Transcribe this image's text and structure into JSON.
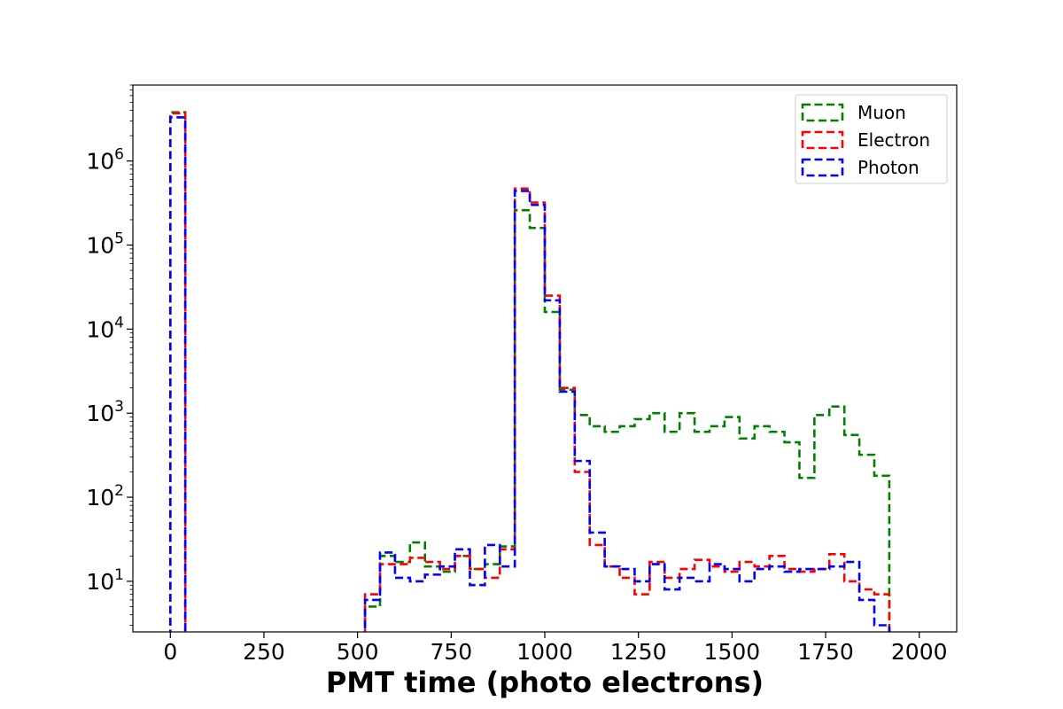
{
  "chart_data": {
    "type": "histogram-step",
    "title": "",
    "xlabel": "PMT time (photo electrons)",
    "ylabel": "",
    "xlim": [
      -100,
      2100
    ],
    "ylim": [
      2.5,
      8000000
    ],
    "yscale": "log",
    "grid": false,
    "legend_position": "top-right",
    "x_ticks": [
      0,
      250,
      500,
      750,
      1000,
      1250,
      1500,
      1750,
      2000
    ],
    "x_tick_labels": [
      "0",
      "250",
      "500",
      "750",
      "1000",
      "1250",
      "1500",
      "1750",
      "2000"
    ],
    "y_ticks": [
      10,
      100,
      1000,
      10000,
      100000,
      1000000
    ],
    "y_tick_labels": [
      {
        "base": "10",
        "exp": "1"
      },
      {
        "base": "10",
        "exp": "2"
      },
      {
        "base": "10",
        "exp": "3"
      },
      {
        "base": "10",
        "exp": "4"
      },
      {
        "base": "10",
        "exp": "5"
      },
      {
        "base": "10",
        "exp": "6"
      }
    ],
    "bin_edges": [
      0,
      40,
      80,
      120,
      160,
      200,
      240,
      280,
      320,
      360,
      400,
      440,
      480,
      520,
      560,
      600,
      640,
      680,
      720,
      760,
      800,
      840,
      880,
      920,
      960,
      1000,
      1040,
      1080,
      1120,
      1160,
      1200,
      1240,
      1280,
      1320,
      1360,
      1400,
      1440,
      1480,
      1520,
      1560,
      1600,
      1640,
      1680,
      1720,
      1760,
      1800,
      1840,
      1880,
      1920
    ],
    "series": [
      {
        "name": "Muon",
        "color": "#008000",
        "values": [
          3800000,
          0,
          0,
          0,
          0,
          0,
          0,
          0,
          0,
          0,
          0,
          0,
          0,
          5,
          20,
          17,
          29,
          15,
          13,
          20,
          14,
          16,
          26,
          260000,
          160000,
          16000,
          1900,
          950,
          700,
          600,
          700,
          850,
          1000,
          600,
          1000,
          600,
          700,
          900,
          500,
          700,
          600,
          450,
          170,
          950,
          1200,
          550,
          320,
          180
        ]
      },
      {
        "name": "Electron",
        "color": "#ff0000",
        "values": [
          3700000,
          0,
          0,
          0,
          0,
          0,
          0,
          0,
          0,
          0,
          0,
          0,
          0,
          7,
          16,
          16,
          19,
          17,
          14,
          20,
          14,
          11,
          24,
          470000,
          320000,
          25000,
          2000,
          200,
          27,
          15,
          11,
          7,
          17,
          11,
          14,
          18,
          15,
          13,
          17,
          15,
          20,
          14,
          13,
          14,
          21,
          10,
          8,
          7
        ]
      },
      {
        "name": "Photon",
        "color": "#0000ff",
        "values": [
          3300000,
          0,
          0,
          0,
          0,
          0,
          0,
          0,
          0,
          0,
          0,
          0,
          0,
          6,
          22,
          11,
          10,
          12,
          15,
          24,
          9,
          27,
          15,
          440000,
          300000,
          22000,
          1800,
          270,
          38,
          15,
          14,
          10,
          16,
          8,
          11,
          10,
          16,
          14,
          10,
          14,
          15,
          13,
          14,
          14,
          15,
          17,
          6,
          3
        ]
      }
    ]
  }
}
